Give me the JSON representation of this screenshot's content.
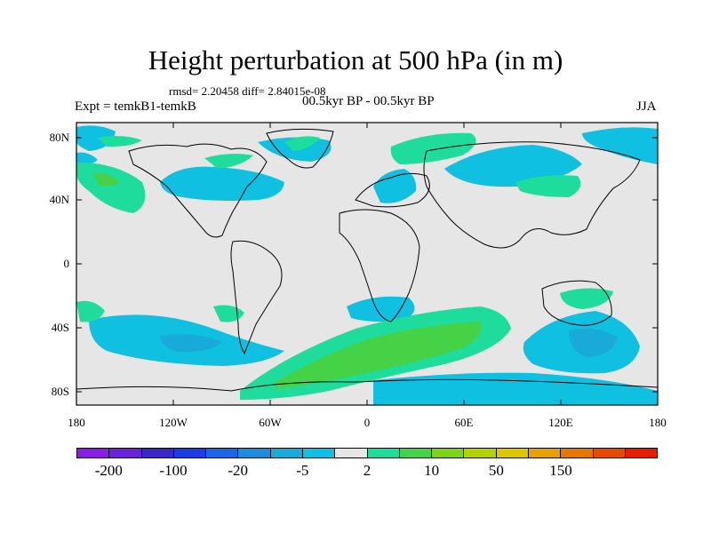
{
  "title": "Height perturbation at 500 hPa (in m)",
  "stats": "rmsd= 2.20458 diff= 2.84015e-08",
  "experiment": "Expt = temkB1-temkB",
  "period": "00.5kyr BP - 00.5kyr BP",
  "season": "JJA",
  "y_ticks": [
    "80N",
    "40N",
    "0",
    "40S",
    "80S"
  ],
  "x_ticks": [
    "180",
    "120W",
    "60W",
    "0",
    "60E",
    "120E",
    "180"
  ],
  "colorbar": {
    "colors": [
      "#8a1ee6",
      "#6a22d8",
      "#3c28c8",
      "#1e3ce6",
      "#1e64e6",
      "#1e8cdc",
      "#18aad8",
      "#10c0e0",
      "#e6e6e6",
      "#1edc9c",
      "#46d246",
      "#80d218",
      "#b4d200",
      "#dcc800",
      "#e6a000",
      "#e67800",
      "#e64a00",
      "#e61e00"
    ],
    "labels": [
      "-200",
      "-100",
      "-20",
      "-5",
      "2",
      "10",
      "50",
      "150"
    ]
  },
  "field_colors": {
    "background": "#e6e6e6",
    "neg_light": "#10c0e0",
    "neg_medium": "#18aad8",
    "pos_light": "#1edc9c",
    "pos_medium": "#46d246"
  }
}
